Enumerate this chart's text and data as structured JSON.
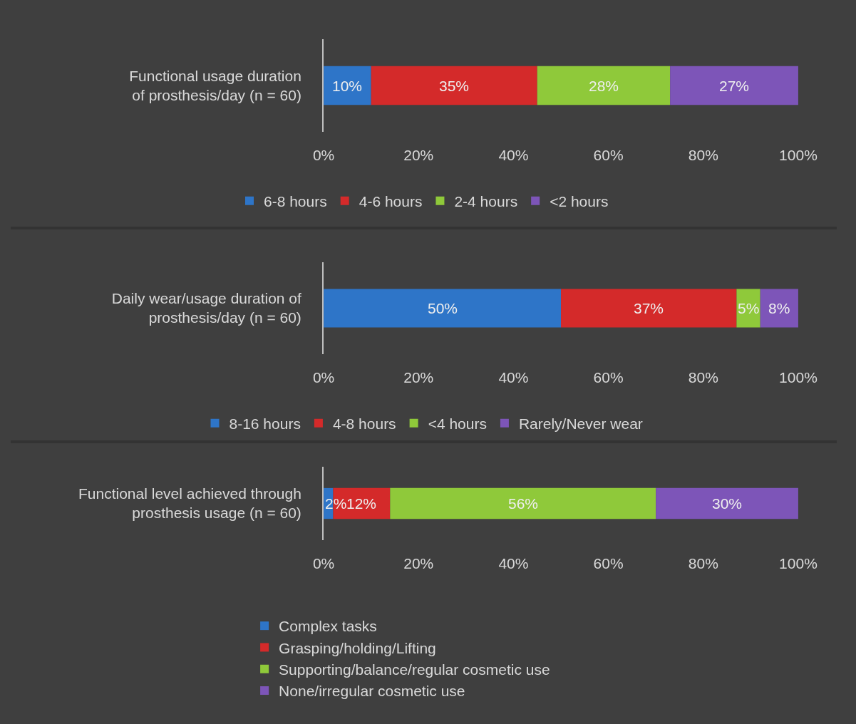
{
  "chart_data": [
    {
      "type": "bar",
      "orientation": "horizontal",
      "stacked": true,
      "legend": "bottom",
      "grid": false,
      "categories": [
        "Functional usage duration\nof prosthesis/day (n = 60)"
      ],
      "xlim": [
        0,
        100
      ],
      "xticks": [
        {
          "value": 0,
          "label": "0%"
        },
        {
          "value": 20,
          "label": "20%"
        },
        {
          "value": 40,
          "label": "40%"
        },
        {
          "value": 60,
          "label": "60%"
        },
        {
          "value": 80,
          "label": "80%"
        },
        {
          "value": 100,
          "label": "100%"
        }
      ],
      "series": [
        {
          "name": "6-8 hours",
          "color": "#2e75c8",
          "values": [
            10
          ],
          "value_labels": [
            "10%"
          ]
        },
        {
          "name": "4-6 hours",
          "color": "#d42a2a",
          "values": [
            35
          ],
          "value_labels": [
            "35%"
          ]
        },
        {
          "name": "2-4 hours",
          "color": "#8fc93a",
          "values": [
            28
          ],
          "value_labels": [
            "28%"
          ]
        },
        {
          "name": "<2 hours",
          "color": "#7d55b8",
          "values": [
            27
          ],
          "value_labels": [
            "27%"
          ]
        }
      ]
    },
    {
      "type": "bar",
      "orientation": "horizontal",
      "stacked": true,
      "legend": "bottom",
      "grid": false,
      "categories": [
        "Daily wear/usage duration of\nprosthesis/day (n = 60)"
      ],
      "xlim": [
        0,
        100
      ],
      "xticks": [
        {
          "value": 0,
          "label": "0%"
        },
        {
          "value": 20,
          "label": "20%"
        },
        {
          "value": 40,
          "label": "40%"
        },
        {
          "value": 60,
          "label": "60%"
        },
        {
          "value": 80,
          "label": "80%"
        },
        {
          "value": 100,
          "label": "100%"
        }
      ],
      "series": [
        {
          "name": "8-16 hours",
          "color": "#2e75c8",
          "values": [
            50
          ],
          "value_labels": [
            "50%"
          ]
        },
        {
          "name": "4-8 hours",
          "color": "#d42a2a",
          "values": [
            37
          ],
          "value_labels": [
            "37%"
          ]
        },
        {
          "name": "<4 hours",
          "color": "#8fc93a",
          "values": [
            5
          ],
          "value_labels": [
            "5%"
          ]
        },
        {
          "name": "Rarely/Never wear",
          "color": "#7d55b8",
          "values": [
            8
          ],
          "value_labels": [
            "8%"
          ]
        }
      ]
    },
    {
      "type": "bar",
      "orientation": "horizontal",
      "stacked": true,
      "legend": "bottom",
      "grid": false,
      "categories": [
        "Functional level achieved through\nprosthesis usage (n = 60)"
      ],
      "xlim": [
        0,
        100
      ],
      "xticks": [
        {
          "value": 0,
          "label": "0%"
        },
        {
          "value": 20,
          "label": "20%"
        },
        {
          "value": 40,
          "label": "40%"
        },
        {
          "value": 60,
          "label": "60%"
        },
        {
          "value": 80,
          "label": "80%"
        },
        {
          "value": 100,
          "label": "100%"
        }
      ],
      "series": [
        {
          "name": "Complex tasks",
          "color": "#2e75c8",
          "values": [
            2
          ],
          "value_labels": [
            "2%"
          ]
        },
        {
          "name": "Grasping/holding/Lifting",
          "color": "#d42a2a",
          "values": [
            12
          ],
          "value_labels": [
            "12%"
          ]
        },
        {
          "name": "Supporting/balance/regular cosmetic use",
          "color": "#8fc93a",
          "values": [
            56
          ],
          "value_labels": [
            "56%"
          ]
        },
        {
          "name": "None/irregular cosmetic use",
          "color": "#7d55b8",
          "values": [
            30
          ],
          "value_labels": [
            "30%"
          ]
        }
      ]
    }
  ]
}
